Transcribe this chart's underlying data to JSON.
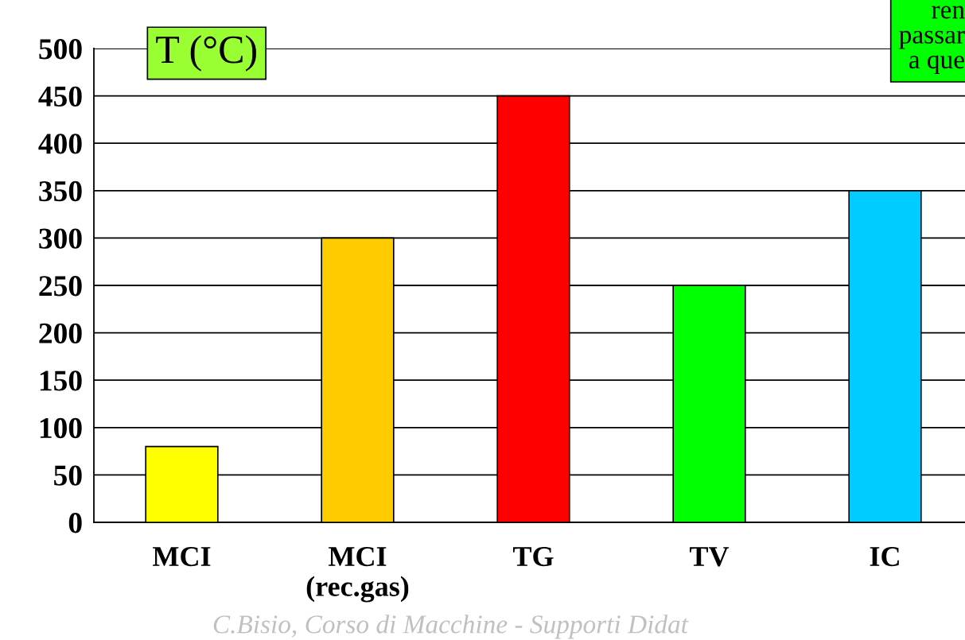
{
  "chart_data": {
    "type": "bar",
    "title": "T (°C)",
    "categories": [
      "MCI",
      "MCI\n(rec.gas)",
      "TG",
      "TV",
      "IC"
    ],
    "values": [
      80,
      300,
      450,
      250,
      350
    ],
    "colors": [
      "#ffff00",
      "#ffcc00",
      "#ff0000",
      "#00ff00",
      "#00ccff"
    ],
    "ylim": [
      0,
      500
    ],
    "yticks": [
      0,
      50,
      100,
      150,
      200,
      250,
      300,
      350,
      400,
      450,
      500
    ],
    "grid": "y",
    "annotations": [
      "ren\npassar\na que",
      "C.Bisio, Corso di Macchine - Supporti Didat"
    ]
  }
}
